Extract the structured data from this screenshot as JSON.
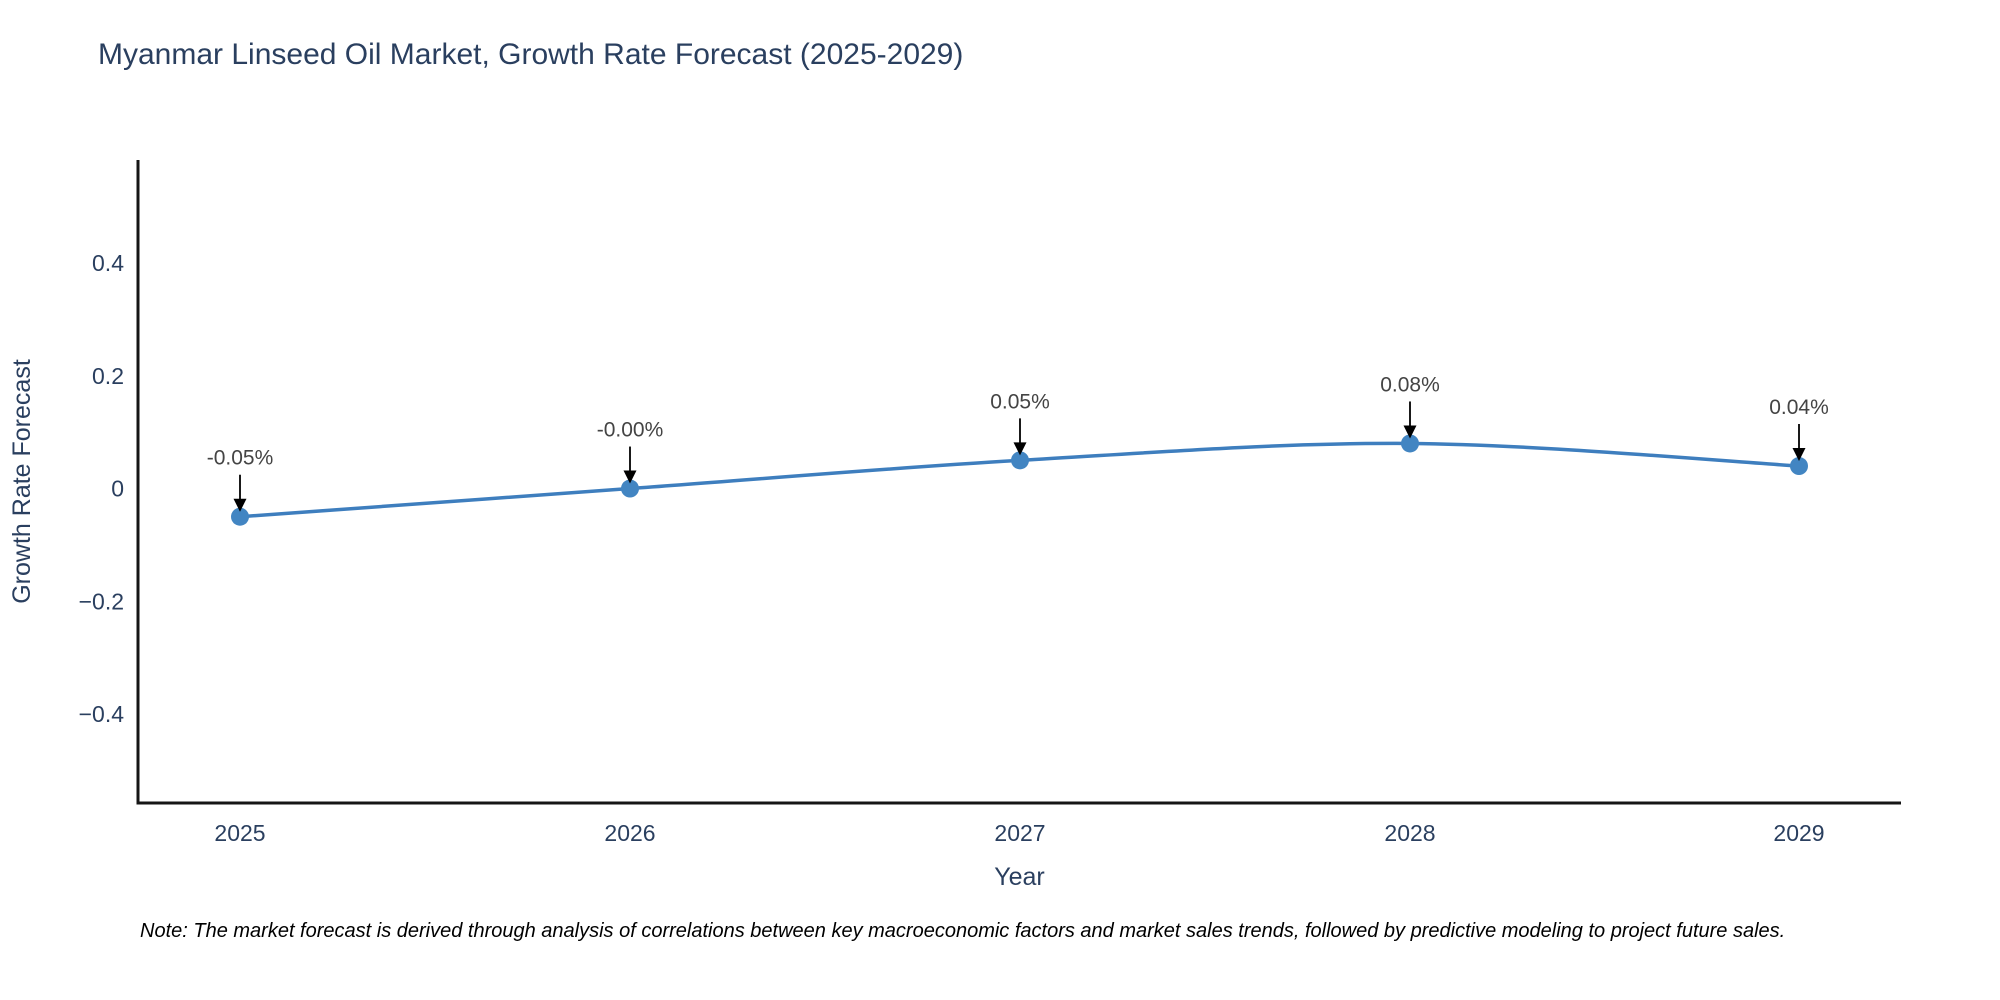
{
  "title": "Myanmar Linseed Oil Market, Growth Rate Forecast (2025-2029)",
  "note": "Note: The market forecast is derived through analysis of correlations between key macroeconomic factors and market sales trends, followed by predictive modeling to project future sales.",
  "chart_data": {
    "type": "line",
    "title": "Myanmar Linseed Oil Market, Growth Rate Forecast (2025-2029)",
    "categories": [
      "2025",
      "2026",
      "2027",
      "2028",
      "2029"
    ],
    "series": [
      {
        "name": "Growth Rate Forecast",
        "values": [
          -0.05,
          0.0,
          0.05,
          0.08,
          0.04
        ]
      }
    ],
    "point_labels": [
      "-0.05%",
      "-0.00%",
      "0.05%",
      "0.08%",
      "0.04%"
    ],
    "xlabel": "Year",
    "ylabel": "Growth Rate Forecast",
    "yticks": [
      0.4,
      0.2,
      0,
      -0.2,
      -0.4
    ],
    "ytick_labels": [
      "0.4",
      "0.2",
      "0",
      "−0.2",
      "−0.4"
    ],
    "ylim": [
      -0.558,
      0.583
    ],
    "grid": false,
    "legend": "none",
    "line_shape": "spline",
    "annotation_style": "arrow-down-to-point",
    "colors": {
      "line": "#3E7EBE",
      "marker": "#4285C2",
      "axis": "#151515",
      "tick_text": "#2a3f5f",
      "axis_title_text": "#2a3f5f",
      "annotation_text": "#444444",
      "arrow": "#000000"
    }
  }
}
